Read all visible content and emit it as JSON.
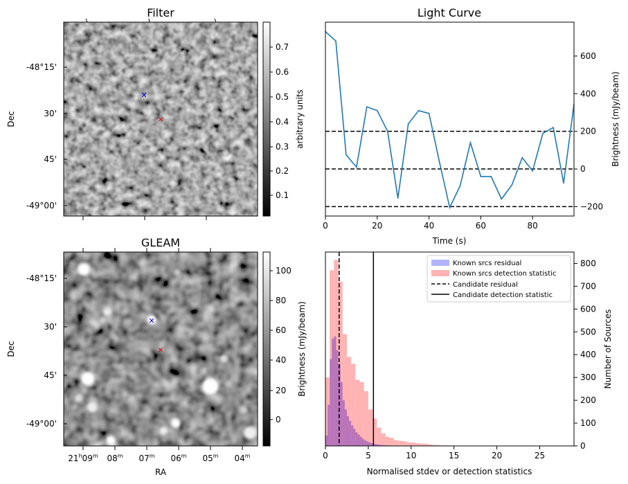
{
  "panels": {
    "filter": {
      "title": "Filter",
      "ylabel": "Dec",
      "dec_ticks": [
        "-48°15'",
        "30'",
        "45'",
        "-49°00'"
      ],
      "colorbar_label": "arbitrary units",
      "colorbar_ticks": [
        "0.1",
        "0.2",
        "0.3",
        "0.4",
        "0.5",
        "0.6",
        "0.7"
      ]
    },
    "gleam": {
      "title": "GLEAM",
      "ylabel": "Dec",
      "xlabel": "RA",
      "dec_ticks": [
        "-48°15'",
        "30'",
        "45'",
        "-49°00'"
      ],
      "ra_ticks": [
        "21h09m",
        "08m",
        "07m",
        "06m",
        "05m",
        "04m"
      ],
      "colorbar_label": "Brightness (mJy/beam)",
      "colorbar_ticks": [
        "0",
        "20",
        "40",
        "60",
        "80",
        "100"
      ]
    }
  },
  "colors": {
    "line": "#1f77b4",
    "known_residual": "#b3b3ff",
    "known_detection": "#ffb3b3",
    "overlap": "#c77fb8",
    "marker_blue": "#0000cc",
    "marker_red": "#e00000"
  },
  "chart_data": [
    {
      "type": "line",
      "title": "Light Curve",
      "xlabel": "Time (s)",
      "ylabel": "Brightness (mJy/beam)",
      "xlim": [
        0,
        96
      ],
      "ylim": [
        -250,
        780
      ],
      "xticks": [
        0,
        20,
        40,
        60,
        80
      ],
      "yticks": [
        -200,
        0,
        200,
        400,
        600
      ],
      "x": [
        0,
        4,
        8,
        12,
        16,
        20,
        24,
        28,
        32,
        36,
        40,
        44,
        48,
        52,
        56,
        60,
        64,
        68,
        72,
        76,
        80,
        84,
        88,
        92,
        96
      ],
      "y": [
        730,
        680,
        75,
        10,
        330,
        310,
        200,
        -155,
        240,
        310,
        295,
        40,
        -205,
        -90,
        140,
        -40,
        -40,
        -160,
        -85,
        60,
        -10,
        190,
        220,
        -75,
        345
      ],
      "hlines": [
        -200,
        0,
        200
      ]
    },
    {
      "type": "bar",
      "title": "",
      "xlabel": "Normalised stdev or detection statistics",
      "ylabel": "Number of Sources",
      "xlim": [
        0,
        29
      ],
      "ylim": [
        0,
        850
      ],
      "xticks": [
        0,
        5,
        10,
        15,
        20,
        25
      ],
      "yticks": [
        0,
        100,
        200,
        300,
        400,
        500,
        600,
        700,
        800
      ],
      "legend_position": "top-right",
      "series": [
        {
          "name": "Known srcs residual",
          "bin_width": 0.25,
          "bin_start": 0,
          "values": [
            45,
            180,
            380,
            470,
            480,
            420,
            360,
            280,
            200,
            160,
            130,
            110,
            90,
            75,
            60,
            50,
            40,
            32,
            25,
            20,
            16,
            12,
            10,
            8,
            6,
            5,
            4,
            3,
            3,
            2,
            2,
            1
          ]
        },
        {
          "name": "Known srcs detection statistic",
          "bin_width": 0.5,
          "bin_start": 0,
          "values": [
            300,
            770,
            815,
            720,
            490,
            390,
            360,
            290,
            280,
            240,
            160,
            120,
            80,
            55,
            40,
            35,
            25,
            22,
            20,
            15,
            15,
            12,
            10,
            10,
            6,
            4,
            3,
            2,
            2,
            2,
            1,
            1,
            1,
            1,
            1,
            1,
            0,
            0,
            1,
            0,
            0,
            0,
            1,
            0,
            0,
            0,
            0,
            0,
            0,
            0,
            0,
            0,
            0,
            0,
            0,
            0
          ]
        }
      ],
      "vlines": [
        {
          "name": "Candidate residual",
          "x": 1.6,
          "style": "dashed"
        },
        {
          "name": "Candidate detection statistic",
          "x": 5.6,
          "style": "solid"
        }
      ]
    }
  ]
}
